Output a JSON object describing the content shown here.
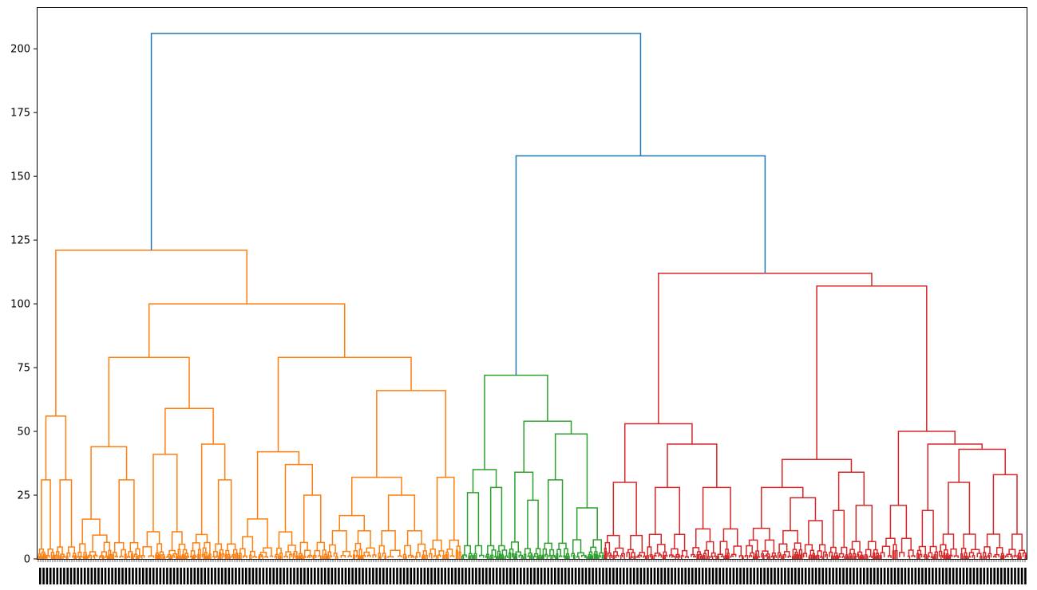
{
  "chart_data": {
    "type": "dendrogram",
    "title": "",
    "xlabel": "",
    "ylabel": "",
    "ylim": [
      0,
      216
    ],
    "yticks": [
      0,
      25,
      50,
      75,
      100,
      125,
      150,
      175,
      200
    ],
    "grid": false,
    "x_tick_labels": "dense leaf index labels, rotated vertically, illegible",
    "colors": {
      "above_threshold": "#1f77b4",
      "cluster_orange": "#ff7f0e",
      "cluster_green": "#2ca02c",
      "cluster_red": "#d62728"
    },
    "top_merges": [
      {
        "height": 206,
        "joins": [
          "orange_cluster",
          "green_red_group"
        ],
        "color": "#1f77b4"
      },
      {
        "height": 158,
        "joins": [
          "green_cluster",
          "red_cluster"
        ],
        "color": "#1f77b4"
      }
    ],
    "clusters": [
      {
        "color": "#ff7f0e",
        "root_height": 121,
        "leaf_fraction": 0.43,
        "merges": [
          121,
          100,
          79,
          79,
          66,
          59,
          56,
          45,
          44,
          42,
          41,
          37,
          32,
          32,
          31,
          31,
          31,
          25,
          17
        ]
      },
      {
        "color": "#2ca02c",
        "root_height": 72,
        "leaf_fraction": 0.145,
        "merges": [
          72,
          54,
          49,
          35,
          34,
          31,
          26,
          23,
          20
        ]
      },
      {
        "color": "#d62728",
        "root_height": 112,
        "leaf_fraction": 0.425,
        "merges": [
          112,
          107,
          53,
          50,
          45,
          45,
          43,
          39,
          34,
          33,
          30,
          28,
          28,
          24,
          21,
          21,
          19,
          15,
          13
        ]
      }
    ]
  }
}
